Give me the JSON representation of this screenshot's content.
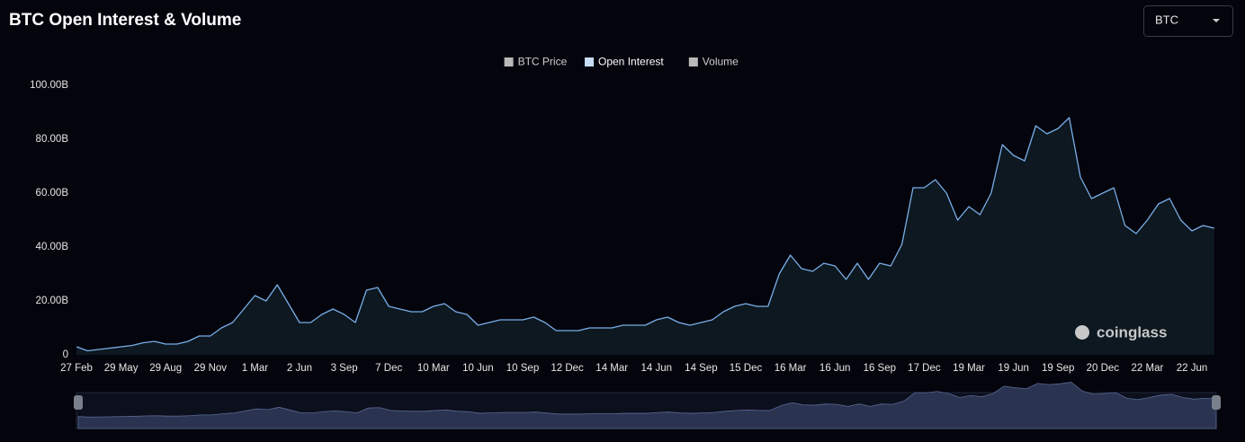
{
  "chart_data": {
    "type": "area",
    "title": "BTC Open Interest & Volume",
    "selector": "BTC",
    "watermark": "coinglass",
    "legend": [
      {
        "name": "BTC Price",
        "color": "#d9d9d9",
        "active": false
      },
      {
        "name": "Open Interest",
        "color": "#c6dcf7",
        "active": true
      },
      {
        "name": "Volume",
        "color": "#d9d9d9",
        "active": false
      }
    ],
    "categories": [
      "27 Feb",
      null,
      null,
      null,
      "29 May",
      null,
      null,
      null,
      "29 Aug",
      null,
      null,
      null,
      "29 Nov",
      null,
      null,
      null,
      "1 Mar",
      null,
      null,
      null,
      "2 Jun",
      null,
      null,
      null,
      "3 Sep",
      null,
      null,
      null,
      "7 Dec",
      null,
      null,
      null,
      "10 Mar",
      null,
      null,
      null,
      "10 Jun",
      null,
      null,
      null,
      "10 Sep",
      null,
      null,
      null,
      "12 Dec",
      null,
      null,
      null,
      "14 Mar",
      null,
      null,
      null,
      "14 Jun",
      null,
      null,
      null,
      "14 Sep",
      null,
      null,
      null,
      "15 Dec",
      null,
      null,
      null,
      "16 Mar",
      null,
      null,
      null,
      "16 Jun",
      null,
      null,
      null,
      "16 Sep",
      null,
      null,
      null,
      "17 Dec",
      null,
      null,
      null,
      "19 Mar",
      null,
      null,
      null,
      "19 Jun",
      null,
      null,
      null,
      "19 Sep",
      null,
      null,
      null,
      "20 Dec",
      null,
      null,
      null,
      "22 Mar",
      null,
      null,
      null,
      "22 Jun",
      null,
      null
    ],
    "series": [
      {
        "name": "Open Interest",
        "color": "#79aee8",
        "fill": "#0d1820",
        "values": [
          3,
          1.5,
          2,
          2.5,
          3,
          3.5,
          4.5,
          5,
          4,
          4,
          5,
          7,
          7,
          10,
          12,
          17,
          22,
          20,
          26,
          19,
          12,
          12,
          15,
          17,
          15,
          12,
          24,
          25,
          18,
          17,
          16,
          16,
          18,
          19,
          16,
          15,
          11,
          12,
          13,
          13,
          13,
          14,
          12,
          9,
          9,
          9,
          10,
          10,
          10,
          11,
          11,
          11,
          13,
          14,
          12,
          11,
          12,
          13,
          16,
          18,
          19,
          18,
          18,
          30,
          37,
          32,
          31,
          34,
          33,
          28,
          34,
          28,
          34,
          33,
          41,
          62,
          62,
          65,
          60,
          50,
          55,
          52,
          60,
          78,
          74,
          72,
          85,
          82,
          84,
          88,
          66,
          58,
          60,
          62,
          48,
          45,
          50,
          56,
          58,
          50,
          46,
          48,
          47
        ]
      }
    ],
    "ylim": [
      0,
      100
    ],
    "yticks": [
      0,
      {
        "value": 20,
        "label": "20.00B"
      },
      {
        "value": 40,
        "label": "40.00B"
      },
      {
        "value": 60,
        "label": "60.00B"
      },
      {
        "value": 80,
        "label": "80.00B"
      },
      {
        "value": 100,
        "label": "100.00B"
      }
    ],
    "grid": false
  }
}
